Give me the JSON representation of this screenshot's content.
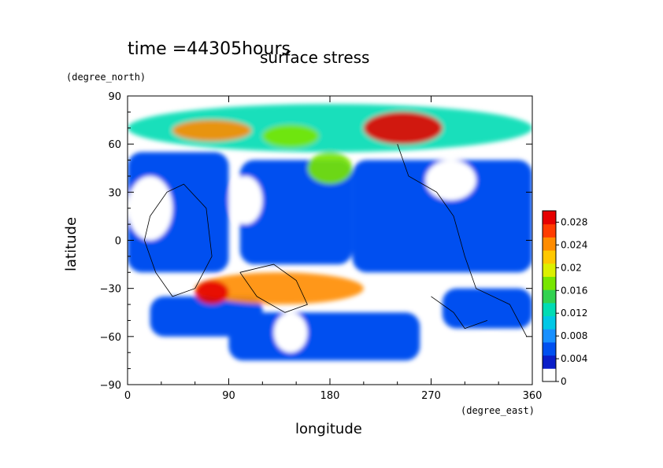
{
  "chart_data": {
    "type": "heatmap",
    "title": "surface stress",
    "time_label": "time =44305hours",
    "xlabel": "longitude",
    "xunits": "(degree_east)",
    "ylabel": "latitude",
    "yunits": "(degree_north)",
    "xlim": [
      0,
      360
    ],
    "ylim": [
      -90,
      90
    ],
    "xticks": [
      "0",
      "90",
      "180",
      "270",
      "360"
    ],
    "yticks": [
      "90",
      "60",
      "30",
      "0",
      "−30",
      "−60",
      "−90"
    ],
    "colorbar": {
      "min": 0,
      "max": 0.03,
      "ticks": [
        "0.028",
        "0.024",
        "0.02",
        "0.016",
        "0.012",
        "0.008",
        "0.004",
        "0"
      ],
      "colors": [
        "#ffffff",
        "#0a1ec8",
        "#0050f0",
        "#1890ff",
        "#00c8e6",
        "#00dcb4",
        "#32d250",
        "#78e600",
        "#dcf000",
        "#ffc800",
        "#ff8c00",
        "#ff3c00",
        "#e60000"
      ]
    },
    "features": [
      {
        "name": "northern band",
        "lon": [
          0,
          360
        ],
        "lat": [
          55,
          85
        ],
        "value": 0.012
      },
      {
        "name": "north max 1",
        "lon": [
          40,
          110
        ],
        "lat": [
          62,
          75
        ],
        "value": 0.024
      },
      {
        "name": "north max 2",
        "lon": [
          120,
          170
        ],
        "lat": [
          58,
          72
        ],
        "value": 0.018
      },
      {
        "name": "north max 3",
        "lon": [
          210,
          280
        ],
        "lat": [
          60,
          80
        ],
        "value": 0.03
      },
      {
        "name": "southern band",
        "lon": [
          60,
          210
        ],
        "lat": [
          -40,
          -20
        ],
        "value": 0.026
      },
      {
        "name": "south max",
        "lon": [
          60,
          90
        ],
        "lat": [
          -40,
          -25
        ],
        "value": 0.03
      },
      {
        "name": "mid-latitude patch",
        "lon": [
          160,
          200
        ],
        "lat": [
          35,
          55
        ],
        "value": 0.018
      }
    ]
  }
}
